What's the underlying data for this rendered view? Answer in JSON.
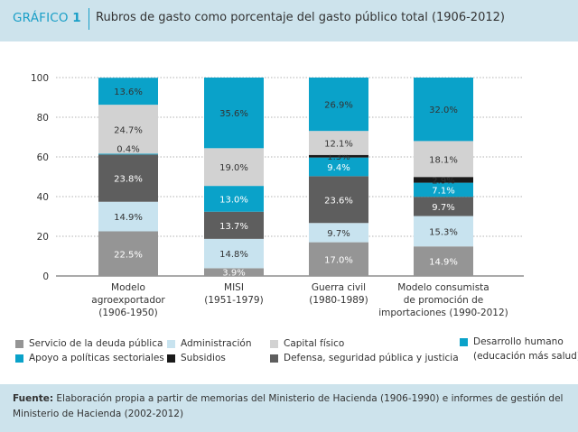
{
  "header": {
    "label_word": "GRÁFICO",
    "label_number": "1",
    "title": "Rubros de gasto como porcentaje del gasto público total (1906-2012)"
  },
  "chart_data": {
    "type": "bar",
    "stacked": true,
    "ylim": [
      0,
      100
    ],
    "yticks": [
      "0",
      "20",
      "40",
      "60",
      "80",
      "100"
    ],
    "grid": true,
    "legend_position": "bottom",
    "categories": [
      [
        "Modelo",
        "agroexportador",
        "(1906-1950)"
      ],
      [
        "MISI",
        "(1951-1979)"
      ],
      [
        "Guerra civil",
        "(1980-1989)"
      ],
      [
        "Modelo consumista",
        "de promoción de",
        "importaciones (1990-2012)"
      ]
    ],
    "series": [
      {
        "name": "Servicio de la deuda pública",
        "color": "#959595",
        "text_color": "#ffffff",
        "values": [
          22.5,
          3.9,
          17.0,
          14.9
        ],
        "labels": [
          "22.5%",
          "3.9%",
          "17.0%",
          "14.9%"
        ]
      },
      {
        "name": "Administración",
        "color": "#c8e3ef",
        "text_color": "#333333",
        "values": [
          14.9,
          14.8,
          9.7,
          15.3
        ],
        "labels": [
          "14.9%",
          "14.8%",
          "9.7%",
          "15.3%"
        ]
      },
      {
        "name": "Defensa, seguridad pública y justicia",
        "color": "#5e5e5e",
        "text_color": "#ffffff",
        "values": [
          23.8,
          13.7,
          23.6,
          9.7
        ],
        "labels": [
          "23.8%",
          "13.7%",
          "23.6%",
          "9.7%"
        ]
      },
      {
        "name": "Apoyo a políticas sectoriales",
        "color": "#0aa2c9",
        "text_color": "#ffffff",
        "values": [
          0.4,
          13.0,
          9.4,
          7.1
        ],
        "labels": [
          "",
          "13.0%",
          "9.4%",
          "7.1%"
        ]
      },
      {
        "name": "Subsidios",
        "color": "#1a1a1a",
        "text_color": "#333333",
        "values": [
          0.0,
          0.0,
          1.3,
          2.9
        ],
        "labels": [
          "",
          "",
          "1.3%",
          "2.9%"
        ]
      },
      {
        "name": "Capital físico",
        "color": "#d2d2d2",
        "text_color": "#333333",
        "values": [
          24.7,
          19.0,
          12.1,
          18.1
        ],
        "labels": [
          "24.7%",
          "19.0%",
          "12.1%",
          "18.1%"
        ]
      },
      {
        "name": "Desarrollo humano (educación más salud)",
        "color": "#0aa2c9",
        "text_color": "#333333",
        "values": [
          13.6,
          35.6,
          26.9,
          32.0
        ],
        "labels": [
          "13.6%",
          "35.6%",
          "26.9%",
          "32.0%"
        ]
      }
    ],
    "annotations": [
      {
        "category": 0,
        "y": 61.6,
        "text": "0.4%"
      }
    ]
  },
  "legend": [
    {
      "label": "Servicio de la deuda pública",
      "color": "#959595"
    },
    {
      "label": "Administración",
      "color": "#c8e3ef"
    },
    {
      "label": "Capital físico",
      "color": "#d2d2d2"
    },
    {
      "label": "Desarrollo humano",
      "color": "#0aa2c9",
      "label_line2": "(educación más salud)"
    },
    {
      "label": "Apoyo a políticas sectoriales",
      "color": "#0aa2c9"
    },
    {
      "label": "Subsidios",
      "color": "#1a1a1a"
    },
    {
      "label": "Defensa, seguridad pública y justicia",
      "color": "#5e5e5e"
    }
  ],
  "footer": {
    "source_label": "Fuente:",
    "source_text": " Elaboración propia a partir de memorias del Ministerio de Hacienda (1906-1990) e informes de gestión del Ministerio de Hacienda (2002-2012)"
  }
}
